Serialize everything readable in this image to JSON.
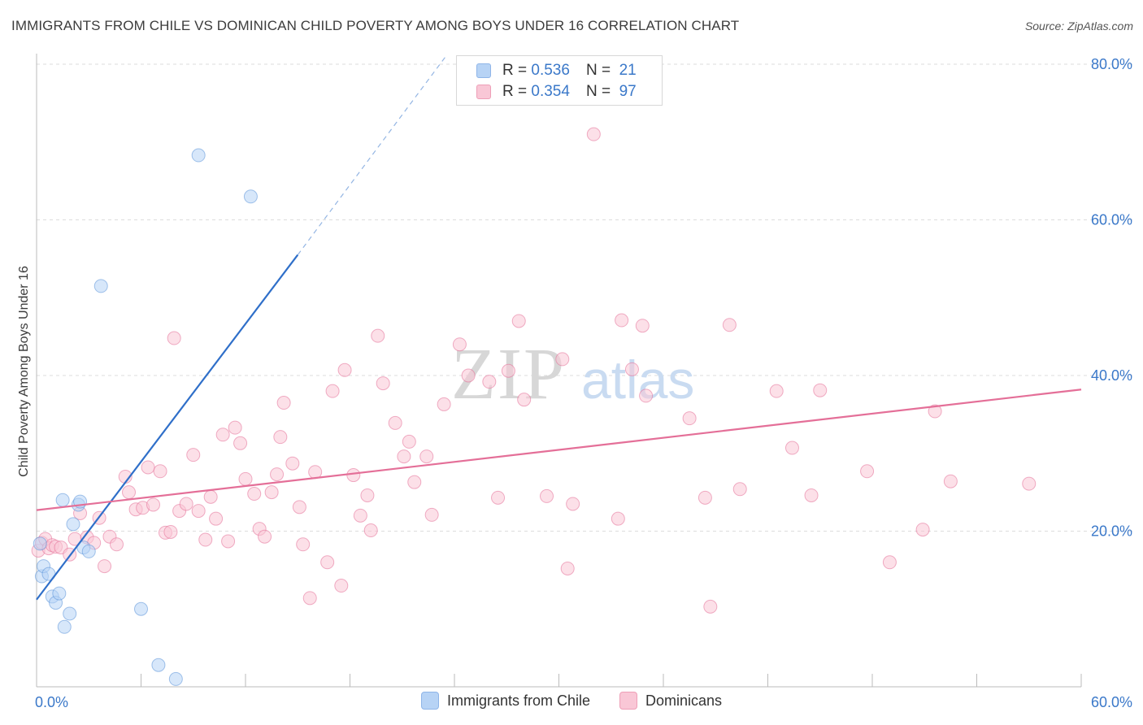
{
  "header": {
    "title": "IMMIGRANTS FROM CHILE VS DOMINICAN CHILD POVERTY AMONG BOYS UNDER 16 CORRELATION CHART",
    "source": "Source: ZipAtlas.com"
  },
  "watermark": {
    "text_zip": "ZIP",
    "text_atlas": "atlas"
  },
  "legend_top": {
    "rows": [
      {
        "r_label": "R =",
        "r_value": "0.536",
        "n_label": "N =",
        "n_value": "21",
        "color": "#b7d3f5",
        "border": "#8fb5e8"
      },
      {
        "r_label": "R =",
        "r_value": "0.354",
        "n_label": "N =",
        "n_value": "97",
        "color": "#f9c7d6",
        "border": "#ee9fb7"
      }
    ]
  },
  "legend_bottom": [
    {
      "label": "Immigrants from Chile",
      "color": "#b7d3f5",
      "border": "#8fb5e8"
    },
    {
      "label": "Dominicans",
      "color": "#f9c7d6",
      "border": "#ee9fb7"
    }
  ],
  "chart_data": {
    "type": "scatter",
    "title": "IMMIGRANTS FROM CHILE VS DOMINICAN CHILD POVERTY AMONG BOYS UNDER 16 CORRELATION CHART",
    "xlabel": "",
    "ylabel": "Child Poverty Among Boys Under 16",
    "xlim": [
      0,
      60
    ],
    "ylim": [
      0,
      80
    ],
    "x_tick_labels": [
      "0.0%",
      "60.0%"
    ],
    "y_tick_labels": [
      "20.0%",
      "40.0%",
      "60.0%",
      "80.0%"
    ],
    "y_ticks": [
      20,
      40,
      60,
      80
    ],
    "grid": true,
    "legend": "top-center",
    "series": [
      {
        "name": "Immigrants from Chile",
        "color": "#5b93d8",
        "fill": "#b7d3f5",
        "r": 0.536,
        "n": 21,
        "trend": {
          "x0": 0,
          "y0": 11.2,
          "x1": 15,
          "y1": 55.5,
          "dashed_to_x": 23.5,
          "dashed_to_y": 81
        },
        "points": [
          [
            0.2,
            18.4
          ],
          [
            0.3,
            14.2
          ],
          [
            0.4,
            15.5
          ],
          [
            0.7,
            14.5
          ],
          [
            0.9,
            11.6
          ],
          [
            1.1,
            10.8
          ],
          [
            1.3,
            12.0
          ],
          [
            1.6,
            7.7
          ],
          [
            1.9,
            9.4
          ],
          [
            1.5,
            24.0
          ],
          [
            2.1,
            20.9
          ],
          [
            2.4,
            23.4
          ],
          [
            2.5,
            23.8
          ],
          [
            2.7,
            17.9
          ],
          [
            3.0,
            17.4
          ],
          [
            3.7,
            51.5
          ],
          [
            6.0,
            10.0
          ],
          [
            7.0,
            2.8
          ],
          [
            8.0,
            1.0
          ],
          [
            9.3,
            68.3
          ],
          [
            12.3,
            63.0
          ]
        ]
      },
      {
        "name": "Dominicans",
        "color": "#e46f98",
        "fill": "#f9c7d6",
        "r": 0.354,
        "n": 97,
        "trend": {
          "x0": 0,
          "y0": 22.7,
          "x1": 60,
          "y1": 38.2
        },
        "points": [
          [
            0.1,
            17.5
          ],
          [
            0.3,
            18.5
          ],
          [
            0.5,
            19.0
          ],
          [
            0.7,
            17.8
          ],
          [
            0.9,
            18.2
          ],
          [
            1.1,
            18.0
          ],
          [
            1.4,
            17.9
          ],
          [
            1.9,
            17.0
          ],
          [
            2.2,
            19.0
          ],
          [
            2.5,
            22.3
          ],
          [
            2.9,
            19.2
          ],
          [
            3.3,
            18.5
          ],
          [
            3.6,
            21.7
          ],
          [
            3.9,
            15.5
          ],
          [
            4.2,
            19.3
          ],
          [
            4.6,
            18.3
          ],
          [
            5.1,
            27.0
          ],
          [
            5.3,
            25.0
          ],
          [
            5.7,
            22.8
          ],
          [
            6.1,
            23.0
          ],
          [
            6.4,
            28.2
          ],
          [
            6.7,
            23.4
          ],
          [
            7.1,
            27.7
          ],
          [
            7.4,
            19.8
          ],
          [
            7.7,
            19.9
          ],
          [
            7.9,
            44.8
          ],
          [
            8.2,
            22.6
          ],
          [
            8.6,
            23.5
          ],
          [
            9.0,
            29.8
          ],
          [
            9.3,
            22.6
          ],
          [
            9.7,
            18.9
          ],
          [
            10.0,
            24.4
          ],
          [
            10.3,
            21.6
          ],
          [
            10.7,
            32.4
          ],
          [
            11.0,
            18.7
          ],
          [
            11.4,
            33.3
          ],
          [
            11.7,
            31.3
          ],
          [
            12.0,
            26.7
          ],
          [
            12.5,
            24.8
          ],
          [
            12.8,
            20.3
          ],
          [
            13.1,
            19.3
          ],
          [
            13.5,
            25.0
          ],
          [
            13.8,
            27.3
          ],
          [
            14.0,
            32.1
          ],
          [
            14.2,
            36.5
          ],
          [
            14.7,
            28.7
          ],
          [
            15.1,
            23.1
          ],
          [
            15.3,
            18.3
          ],
          [
            15.7,
            11.4
          ],
          [
            16.0,
            27.6
          ],
          [
            16.7,
            16.0
          ],
          [
            17.0,
            38.0
          ],
          [
            17.5,
            13.0
          ],
          [
            17.7,
            40.7
          ],
          [
            18.2,
            27.2
          ],
          [
            18.6,
            22.0
          ],
          [
            19.0,
            24.6
          ],
          [
            19.2,
            20.1
          ],
          [
            19.6,
            45.1
          ],
          [
            19.9,
            39.0
          ],
          [
            20.6,
            33.9
          ],
          [
            21.1,
            29.6
          ],
          [
            21.4,
            31.5
          ],
          [
            21.7,
            26.3
          ],
          [
            22.4,
            29.6
          ],
          [
            22.7,
            22.1
          ],
          [
            23.4,
            36.3
          ],
          [
            24.3,
            44.0
          ],
          [
            24.8,
            40.0
          ],
          [
            26.0,
            39.2
          ],
          [
            26.5,
            24.3
          ],
          [
            27.1,
            40.6
          ],
          [
            27.7,
            47.0
          ],
          [
            28.0,
            36.9
          ],
          [
            29.3,
            24.5
          ],
          [
            30.2,
            42.1
          ],
          [
            30.5,
            15.2
          ],
          [
            30.8,
            23.5
          ],
          [
            32.0,
            71.0
          ],
          [
            33.4,
            21.6
          ],
          [
            33.6,
            47.1
          ],
          [
            34.2,
            40.8
          ],
          [
            34.8,
            46.4
          ],
          [
            35.0,
            37.4
          ],
          [
            37.5,
            34.5
          ],
          [
            38.4,
            24.3
          ],
          [
            38.7,
            10.3
          ],
          [
            39.8,
            46.5
          ],
          [
            40.4,
            25.4
          ],
          [
            42.5,
            38.0
          ],
          [
            43.4,
            30.7
          ],
          [
            44.5,
            24.6
          ],
          [
            45.0,
            38.1
          ],
          [
            47.7,
            27.7
          ],
          [
            49.0,
            16.0
          ],
          [
            50.9,
            20.2
          ],
          [
            51.6,
            35.4
          ],
          [
            52.5,
            26.4
          ],
          [
            57.0,
            26.1
          ]
        ]
      }
    ]
  }
}
